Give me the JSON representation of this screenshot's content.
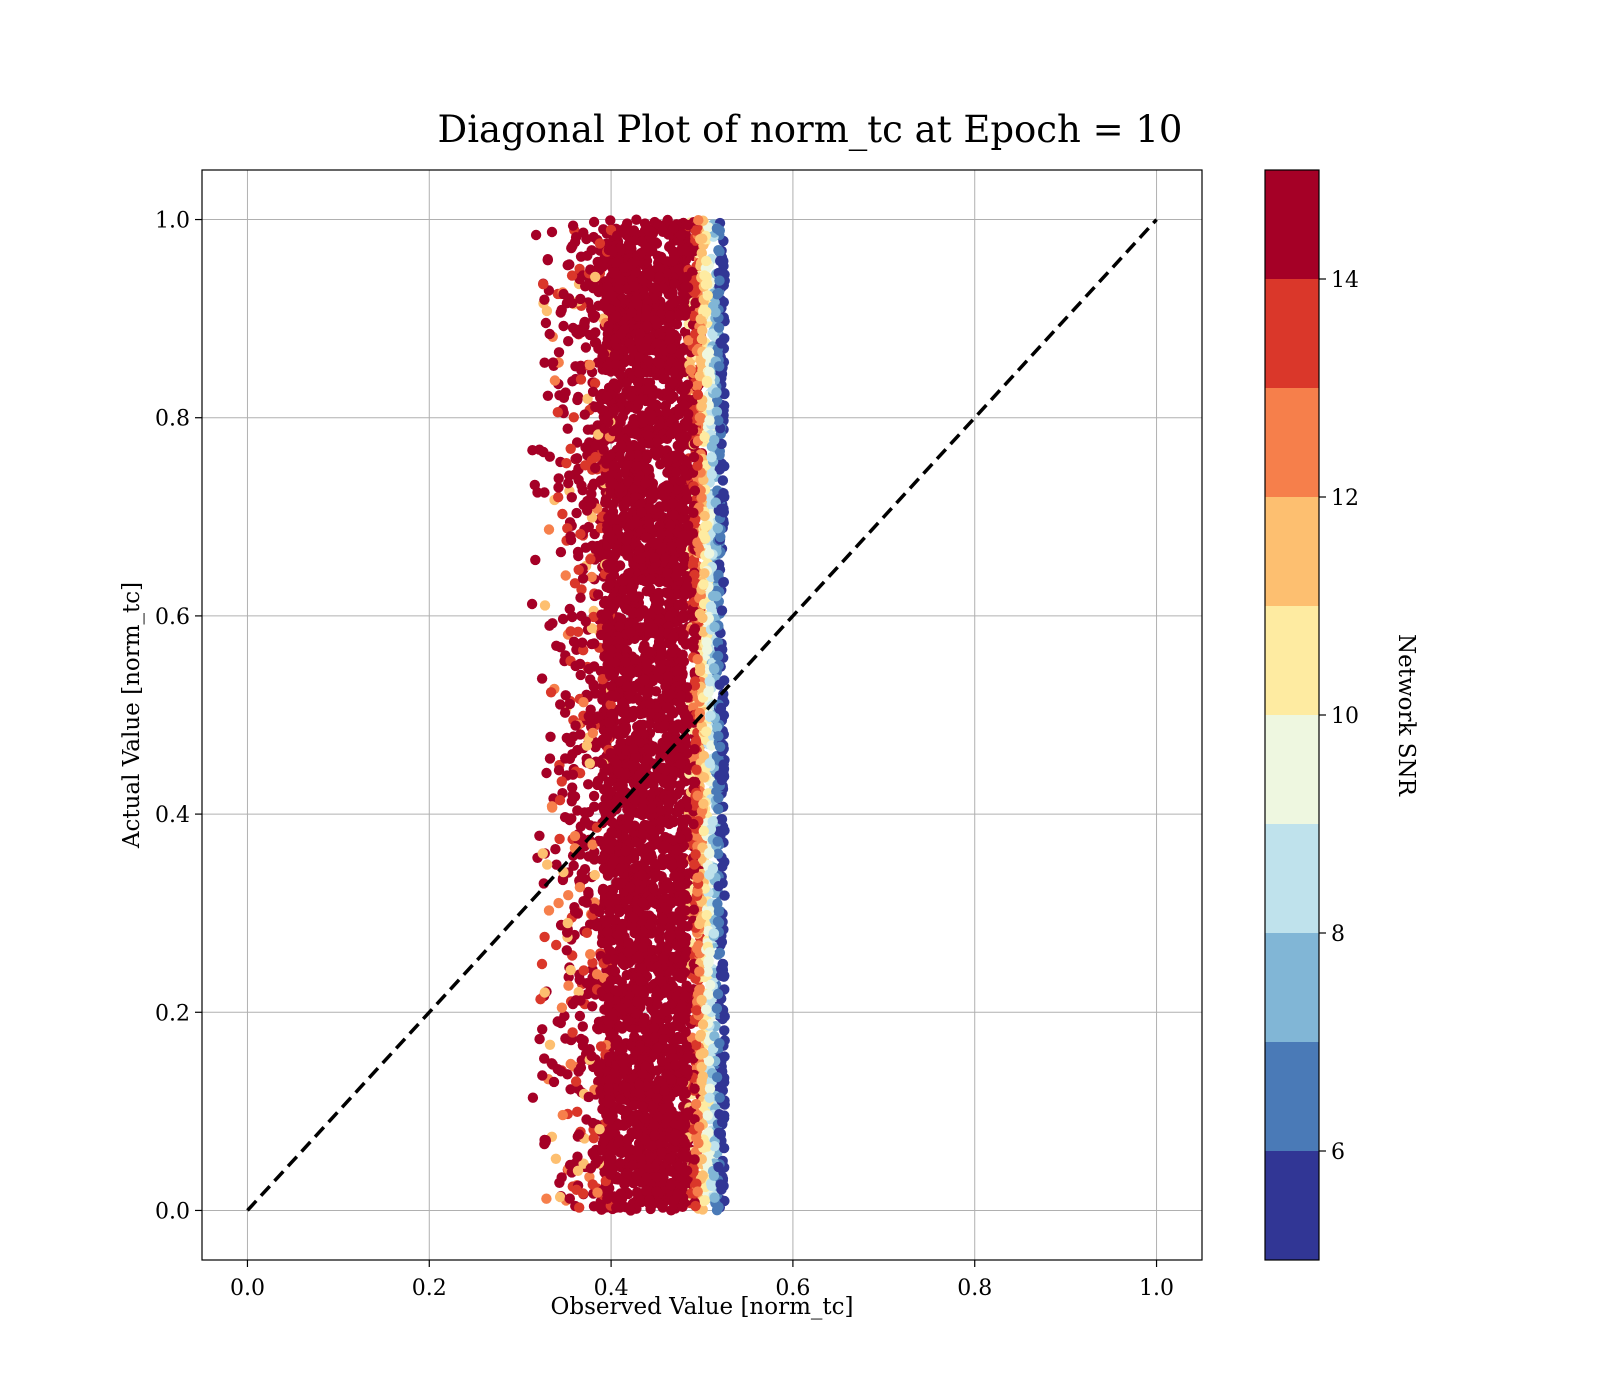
{
  "chart_data": {
    "type": "scatter",
    "title": "Diagonal Plot of norm_tc at Epoch = 10",
    "xlabel": "Observed Value [norm_tc]",
    "ylabel": "Actual Value [norm_tc]",
    "xlim": [
      -0.05,
      1.05
    ],
    "ylim": [
      -0.05,
      1.05
    ],
    "x_ticks": [
      "0.0",
      "0.2",
      "0.4",
      "0.6",
      "0.8",
      "1.0"
    ],
    "y_ticks": [
      "0.0",
      "0.2",
      "0.4",
      "0.6",
      "0.8",
      "1.0"
    ],
    "grid": true,
    "reference_line": {
      "x": [
        0.0,
        1.0
      ],
      "y": [
        0.0,
        1.0
      ],
      "style": "dashed",
      "color": "#000000"
    },
    "points": {
      "x_range": [
        0.31,
        0.525
      ],
      "y_range": [
        0.0,
        1.0
      ],
      "x_core_range": [
        0.39,
        0.5
      ],
      "color_by": "Network SNR",
      "trend": "higher SNR points concentrate at lower observed values; low SNR points form a thin strip near the right edge around 0.5-0.52"
    },
    "colorbar": {
      "label": "Network SNR",
      "range": [
        5,
        15
      ],
      "ticks": [
        "6",
        "8",
        "10",
        "12",
        "14"
      ],
      "tick_values": [
        6,
        8,
        10,
        12,
        14
      ],
      "bins": [
        {
          "from": 5,
          "to": 6,
          "color": "#313695"
        },
        {
          "from": 6,
          "to": 7,
          "color": "#4a7ab7"
        },
        {
          "from": 7,
          "to": 8,
          "color": "#81b6d6"
        },
        {
          "from": 8,
          "to": 9,
          "color": "#bfe2ec"
        },
        {
          "from": 9,
          "to": 10,
          "color": "#eef7e0"
        },
        {
          "from": 10,
          "to": 11,
          "color": "#feeba1"
        },
        {
          "from": 11,
          "to": 12,
          "color": "#fdbf70"
        },
        {
          "from": 12,
          "to": 13,
          "color": "#f67f4b"
        },
        {
          "from": 13,
          "to": 14,
          "color": "#da372a"
        },
        {
          "from": 14,
          "to": 15,
          "color": "#a50026"
        }
      ]
    }
  }
}
